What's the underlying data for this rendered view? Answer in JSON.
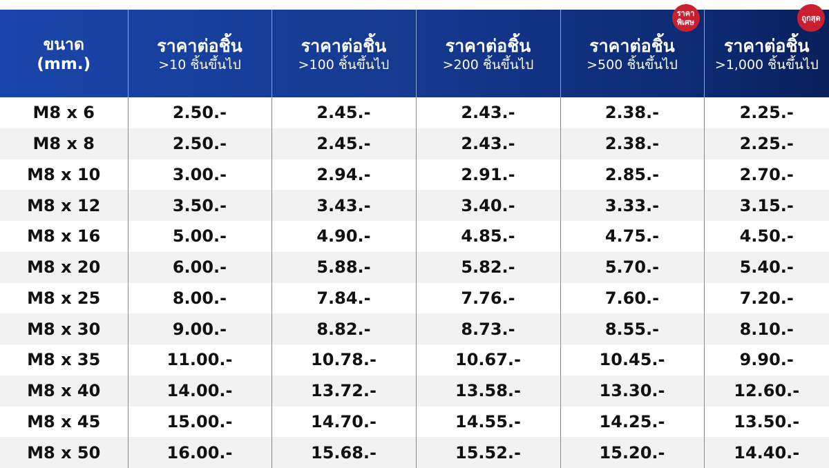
{
  "header": {
    "size": {
      "line1": "ขนาด",
      "line2": "(mm.)"
    },
    "columns": [
      {
        "line1": "ราคาต่อชิ้น",
        "line2": ">10 ชิ้นขึ้นไป",
        "badge": ""
      },
      {
        "line1": "ราคาต่อชิ้น",
        "line2": ">100 ชิ้นขึ้นไป",
        "badge": ""
      },
      {
        "line1": "ราคาต่อชิ้น",
        "line2": ">200 ชิ้นขึ้นไป",
        "badge": ""
      },
      {
        "line1": "ราคาต่อชิ้น",
        "line2": ">500 ชิ้นขึ้นไป",
        "badge": "ราคาพิเศษ"
      },
      {
        "line1": "ราคาต่อชิ้น",
        "line2": ">1,000 ชิ้นขึ้นไป",
        "badge": "ถูกสุด"
      }
    ]
  },
  "colors": {
    "header_start": "#1b45aa",
    "header_end": "#0a1f5c",
    "badge": "#c8202f",
    "row_alt": "#f2f2f2"
  },
  "rows": [
    [
      "M8 x 6",
      "2.50.-",
      "2.45.-",
      "2.43.-",
      "2.38.-",
      "2.25.-"
    ],
    [
      "M8 x 8",
      "2.50.-",
      "2.45.-",
      "2.43.-",
      "2.38.-",
      "2.25.-"
    ],
    [
      "M8 x 10",
      "3.00.-",
      "2.94.-",
      "2.91.-",
      "2.85.-",
      "2.70.-"
    ],
    [
      "M8 x 12",
      "3.50.-",
      "3.43.-",
      "3.40.-",
      "3.33.-",
      "3.15.-"
    ],
    [
      "M8 x 16",
      "5.00.-",
      "4.90.-",
      "4.85.-",
      "4.75.-",
      "4.50.-"
    ],
    [
      "M8 x 20",
      "6.00.-",
      "5.88.-",
      "5.82.-",
      "5.70.-",
      "5.40.-"
    ],
    [
      "M8 x 25",
      "8.00.-",
      "7.84.-",
      "7.76.-",
      "7.60.-",
      "7.20.-"
    ],
    [
      "M8 x 30",
      "9.00.-",
      "8.82.-",
      "8.73.-",
      "8.55.-",
      "8.10.-"
    ],
    [
      "M8 x 35",
      "11.00.-",
      "10.78.-",
      "10.67.-",
      "10.45.-",
      "9.90.-"
    ],
    [
      "M8 x 40",
      "14.00.-",
      "13.72.-",
      "13.58.-",
      "13.30.-",
      "12.60.-"
    ],
    [
      "M8 x 45",
      "15.00.-",
      "14.70.-",
      "14.55.-",
      "14.25.-",
      "13.50.-"
    ],
    [
      "M8 x 50",
      "16.00.-",
      "15.68.-",
      "15.52.-",
      "15.20.-",
      "14.40.-"
    ]
  ]
}
